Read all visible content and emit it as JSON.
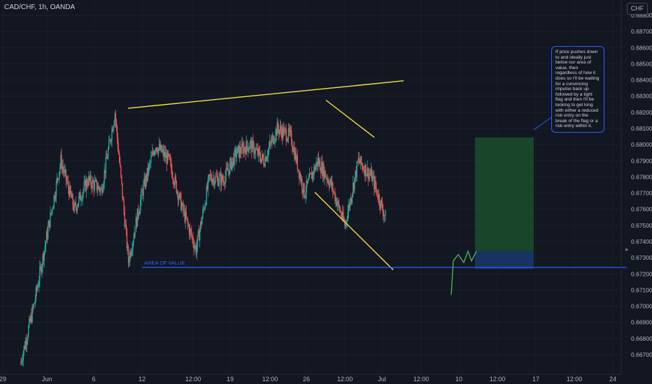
{
  "header": {
    "symbol_line": "CAD/CHF, 1h, OANDA"
  },
  "currency_button": "CHF",
  "note": {
    "text": "If price pushes down to and ideally just below our area of value, then regardless of how it does so I'll be waiting for a convincing impulse back up followed by a tight flag and then I'll be looking to get long with either a reduced risk entry on the break of the flag or a risk entry within it."
  },
  "area_of_value": {
    "label": "AREA OF VALUE",
    "price": 0.6724
  },
  "colors": {
    "background": "#131722",
    "candle_up": "#26a69a",
    "candle_down": "#ef5350",
    "trendline": "#f5e342",
    "area_line": "#2962ff",
    "profit_zone": "#1b4d2c",
    "risk_zone": "#1c3a72",
    "projection": "#4caf50"
  },
  "chart_data": {
    "type": "candlestick",
    "price_axis": {
      "range": [
        0.6664,
        0.6885
      ],
      "ticks": [
        "0.68800",
        "0.68700",
        "0.68600",
        "0.68500",
        "0.68400",
        "0.68300",
        "0.68200",
        "0.68100",
        "0.68000",
        "0.67900",
        "0.67800",
        "0.67700",
        "0.67600",
        "0.67500",
        "0.67400",
        "0.67300",
        "0.67200",
        "0.67100",
        "0.67000",
        "0.66900",
        "0.66800",
        "0.66700"
      ]
    },
    "time_axis": {
      "ticks": [
        "29",
        "Jun",
        "6",
        "12",
        "12:00",
        "19",
        "12:00",
        "26",
        "12:00",
        "Jul",
        "12:00",
        "10",
        "12:00",
        "17",
        "12:00",
        "24"
      ]
    },
    "price_path": [
      [
        "May 31",
        0.6664
      ],
      [
        "Jun 1",
        0.67
      ],
      [
        "Jun 2",
        0.6745
      ],
      [
        "Jun 3",
        0.679
      ],
      [
        "Jun 4",
        0.676
      ],
      [
        "Jun 5",
        0.6778
      ],
      [
        "Jun 6",
        0.6772
      ],
      [
        "Jun 7",
        0.682
      ],
      [
        "Jun 8",
        0.6728
      ],
      [
        "Jun 9",
        0.677
      ],
      [
        "Jun 10",
        0.68
      ],
      [
        "Jun 11",
        0.679
      ],
      [
        "Jun 12",
        0.676
      ],
      [
        "Jun 13",
        0.6735
      ],
      [
        "Jun 14",
        0.678
      ],
      [
        "Jun 15",
        0.6778
      ],
      [
        "Jun 16",
        0.6795
      ],
      [
        "Jun 17",
        0.68
      ],
      [
        "Jun 18",
        0.679
      ],
      [
        "Jun 19",
        0.681
      ],
      [
        "Jun 20",
        0.6805
      ],
      [
        "Jun 21",
        0.677
      ],
      [
        "Jun 22",
        0.679
      ],
      [
        "Jun 23",
        0.6775
      ],
      [
        "Jun 24",
        0.675
      ],
      [
        "Jun 25",
        0.679
      ],
      [
        "Jun 26",
        0.678
      ],
      [
        "Jun 27",
        0.6755
      ]
    ],
    "trendlines": [
      {
        "name": "upper-channel",
        "from": [
          "Jun 7",
          0.68225
        ],
        "to": [
          "Jul 2",
          0.68395
        ]
      },
      {
        "name": "flag-upper",
        "from": [
          "Jun 25",
          0.68275
        ],
        "to": [
          "Jun 29",
          0.68045
        ]
      },
      {
        "name": "flag-lower",
        "from": [
          "Jun 25",
          0.67705
        ],
        "to": [
          "Jul 1",
          0.67225
        ]
      }
    ],
    "long_position": {
      "entry": 0.6734,
      "target": 0.68045,
      "stop": 0.6723
    },
    "projection": [
      [
        0.6707,
        0.6728,
        0.6732,
        0.6727,
        0.6734,
        0.6728,
        0.6734
      ]
    ]
  }
}
